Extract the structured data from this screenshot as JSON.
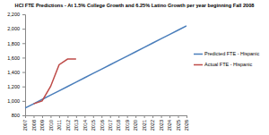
{
  "chart_data": {
    "type": "line",
    "title": "HCI FTE Predictions - At 1.5% College Growth and 6.25% Latino Growth per year beginning Fall 2008",
    "x": [
      2007,
      2008,
      2009,
      2010,
      2011,
      2012,
      2013,
      2014,
      2015,
      2016,
      2017,
      2018,
      2019,
      2020,
      2021,
      2022,
      2023,
      2024,
      2025,
      2026
    ],
    "series": [
      {
        "name": "Predicted FTE - Hispanic",
        "color": "#4a7ebb",
        "values": [
          900,
          960,
          1020,
          1080,
          1140,
          1200,
          1260,
          1320,
          1380,
          1440,
          1500,
          1560,
          1620,
          1680,
          1740,
          1800,
          1860,
          1920,
          1980,
          2040
        ]
      },
      {
        "name": "Actual FTE - Hispanic",
        "color": "#be4b48",
        "values": [
          null,
          960,
          1000,
          1200,
          1500,
          1580,
          1580,
          null,
          null,
          null,
          null,
          null,
          null,
          null,
          null,
          null,
          null,
          null,
          null,
          null
        ]
      }
    ],
    "xlim": [
      2007,
      2026
    ],
    "xticks": [
      2007,
      2008,
      2009,
      2010,
      2011,
      2012,
      2013,
      2014,
      2015,
      2016,
      2017,
      2018,
      2019,
      2020,
      2021,
      2022,
      2023,
      2024,
      2025,
      2026
    ],
    "ylim": [
      800,
      2200
    ],
    "yticks": [
      800,
      {
        "value": 1000,
        "label": "1,000"
      },
      {
        "value": 1200,
        "label": "1,200"
      },
      {
        "value": 1400,
        "label": "1,400"
      },
      {
        "value": 1600,
        "label": "1,600"
      },
      {
        "value": 1800,
        "label": "1,800"
      },
      {
        "value": 2000,
        "label": "2,000"
      },
      {
        "value": 2200,
        "label": "2,200"
      }
    ],
    "legend": "right"
  }
}
